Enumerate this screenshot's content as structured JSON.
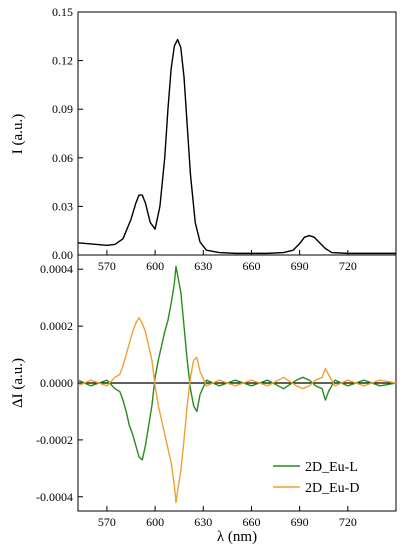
{
  "chart_data": [
    {
      "type": "line",
      "panel": "top",
      "ylabel": "I (a.u.)",
      "xlim": [
        552,
        750
      ],
      "ylim": [
        0,
        0.15
      ],
      "x_ticks": [
        "570",
        "600",
        "630",
        "660",
        "690",
        "720"
      ],
      "y_ticks": [
        "0.00",
        "0.03",
        "0.06",
        "0.09",
        "0.12",
        "0.15"
      ],
      "series": [
        {
          "color": "#000000",
          "x": [
            552,
            560,
            570,
            575,
            580,
            585,
            588,
            590,
            592,
            594,
            597,
            600,
            603,
            606,
            608,
            610,
            612,
            614,
            616,
            618,
            620,
            622,
            625,
            628,
            632,
            640,
            650,
            660,
            670,
            680,
            686,
            690,
            693,
            696,
            699,
            702,
            706,
            710,
            720,
            730,
            740,
            750
          ],
          "y": [
            0.0075,
            0.0068,
            0.006,
            0.0065,
            0.01,
            0.022,
            0.032,
            0.037,
            0.037,
            0.032,
            0.02,
            0.016,
            0.03,
            0.06,
            0.09,
            0.115,
            0.129,
            0.133,
            0.128,
            0.11,
            0.08,
            0.05,
            0.02,
            0.008,
            0.003,
            0.0015,
            0.001,
            0.001,
            0.001,
            0.0015,
            0.003,
            0.007,
            0.011,
            0.012,
            0.011,
            0.008,
            0.004,
            0.0015,
            0.001,
            0.001,
            0.001,
            0.001
          ]
        }
      ]
    },
    {
      "type": "line",
      "panel": "bottom",
      "xlabel": "λ (nm)",
      "ylabel": "ΔI (a.u.)",
      "xlim": [
        552,
        750
      ],
      "ylim": [
        -0.00045,
        0.00045
      ],
      "x_ticks": [
        "570",
        "600",
        "630",
        "660",
        "690",
        "720"
      ],
      "y_ticks": [
        "0.0004",
        "0.0002",
        "0.0000",
        "-0.0002",
        "-0.0004"
      ],
      "legend_position": "bottom-right",
      "series": [
        {
          "name": "2D_Eu-L",
          "color": "#2a8a1e",
          "x": [
            552,
            560,
            570,
            575,
            578,
            580,
            582,
            584,
            586,
            588,
            590,
            592,
            594,
            596,
            598,
            600,
            602,
            604,
            606,
            608,
            610,
            612,
            613,
            614,
            616,
            618,
            620,
            622,
            624,
            626,
            628,
            632,
            640,
            650,
            660,
            670,
            680,
            688,
            692,
            696,
            700,
            704,
            706,
            708,
            712,
            720,
            730,
            740,
            750
          ],
          "y": [
            1e-05,
            -1e-05,
            1e-05,
            -2e-05,
            -3e-05,
            -6e-05,
            -0.0001,
            -0.00015,
            -0.00018,
            -0.00022,
            -0.00026,
            -0.00027,
            -0.00022,
            -0.00015,
            -8e-05,
            2e-05,
            8e-05,
            0.00013,
            0.00018,
            0.00022,
            0.00028,
            0.00035,
            0.00041,
            0.00038,
            0.00032,
            0.0002,
            8e-05,
            -2e-05,
            -8e-05,
            -0.0001,
            -4e-05,
            1e-05,
            -1e-05,
            1e-05,
            -1e-05,
            1e-05,
            -2e-05,
            1e-05,
            2e-05,
            1e-05,
            -1e-05,
            -2e-05,
            -6e-05,
            -3e-05,
            1e-05,
            -1e-05,
            1e-05,
            -1e-05,
            0.0
          ]
        },
        {
          "name": "2D_Eu-D",
          "color": "#f0a030",
          "x": [
            552,
            560,
            570,
            575,
            578,
            580,
            582,
            584,
            586,
            588,
            590,
            592,
            594,
            596,
            598,
            600,
            602,
            604,
            606,
            608,
            610,
            612,
            613,
            614,
            616,
            618,
            620,
            622,
            624,
            626,
            628,
            632,
            640,
            650,
            660,
            670,
            680,
            688,
            692,
            696,
            700,
            704,
            706,
            708,
            712,
            720,
            730,
            740,
            750
          ],
          "y": [
            -1e-05,
            1e-05,
            -1e-05,
            2e-05,
            3e-05,
            6e-05,
            0.0001,
            0.00014,
            0.00018,
            0.00021,
            0.00023,
            0.00021,
            0.00018,
            0.00013,
            8e-05,
            -1e-05,
            -8e-05,
            -0.00013,
            -0.00018,
            -0.00023,
            -0.00028,
            -0.00036,
            -0.00042,
            -0.00038,
            -0.00031,
            -0.0002,
            -8e-05,
            2e-05,
            8e-05,
            9e-05,
            4e-05,
            -1e-05,
            1e-05,
            -1e-05,
            1e-05,
            -1e-05,
            2e-05,
            -1e-05,
            -2e-05,
            -1e-05,
            1e-05,
            2e-05,
            5e-05,
            3e-05,
            -1e-05,
            1e-05,
            -1e-05,
            1e-05,
            0.0
          ]
        }
      ]
    }
  ]
}
